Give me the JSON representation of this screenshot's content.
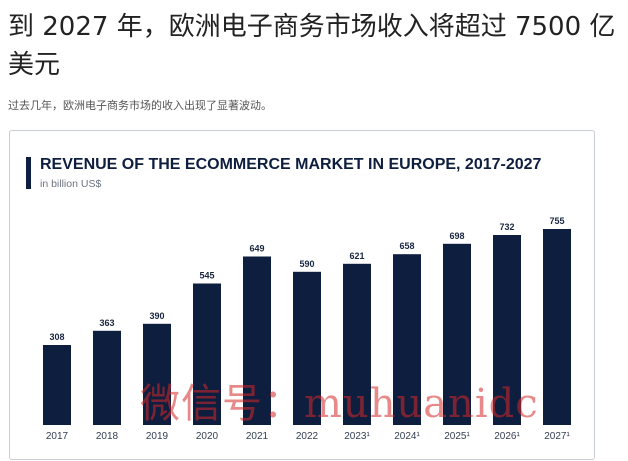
{
  "article": {
    "headline": "到 2027 年，欧洲电子商务市场收入将超过 7500 亿美元",
    "subheadline": "过去几年，欧洲电子商务市场的收入出现了显著波动。"
  },
  "chart_data": {
    "type": "bar",
    "title": "REVENUE OF THE ECOMMERCE MARKET IN EUROPE, 2017-2027",
    "unit_label": "in billion US$",
    "categories": [
      "2017",
      "2018",
      "2019",
      "2020",
      "2021",
      "2022",
      "2023¹",
      "2024¹",
      "2025¹",
      "2026¹",
      "2027¹"
    ],
    "values": [
      308,
      363,
      390,
      545,
      649,
      590,
      621,
      658,
      698,
      732,
      755
    ],
    "xlabel": "",
    "ylabel": "",
    "ylim": [
      0,
      755
    ],
    "grid": false,
    "bar_color": "#0e1e3e",
    "accent_color": "#0e1e3e"
  },
  "watermark": {
    "text": "微信号：muhuanidc"
  }
}
